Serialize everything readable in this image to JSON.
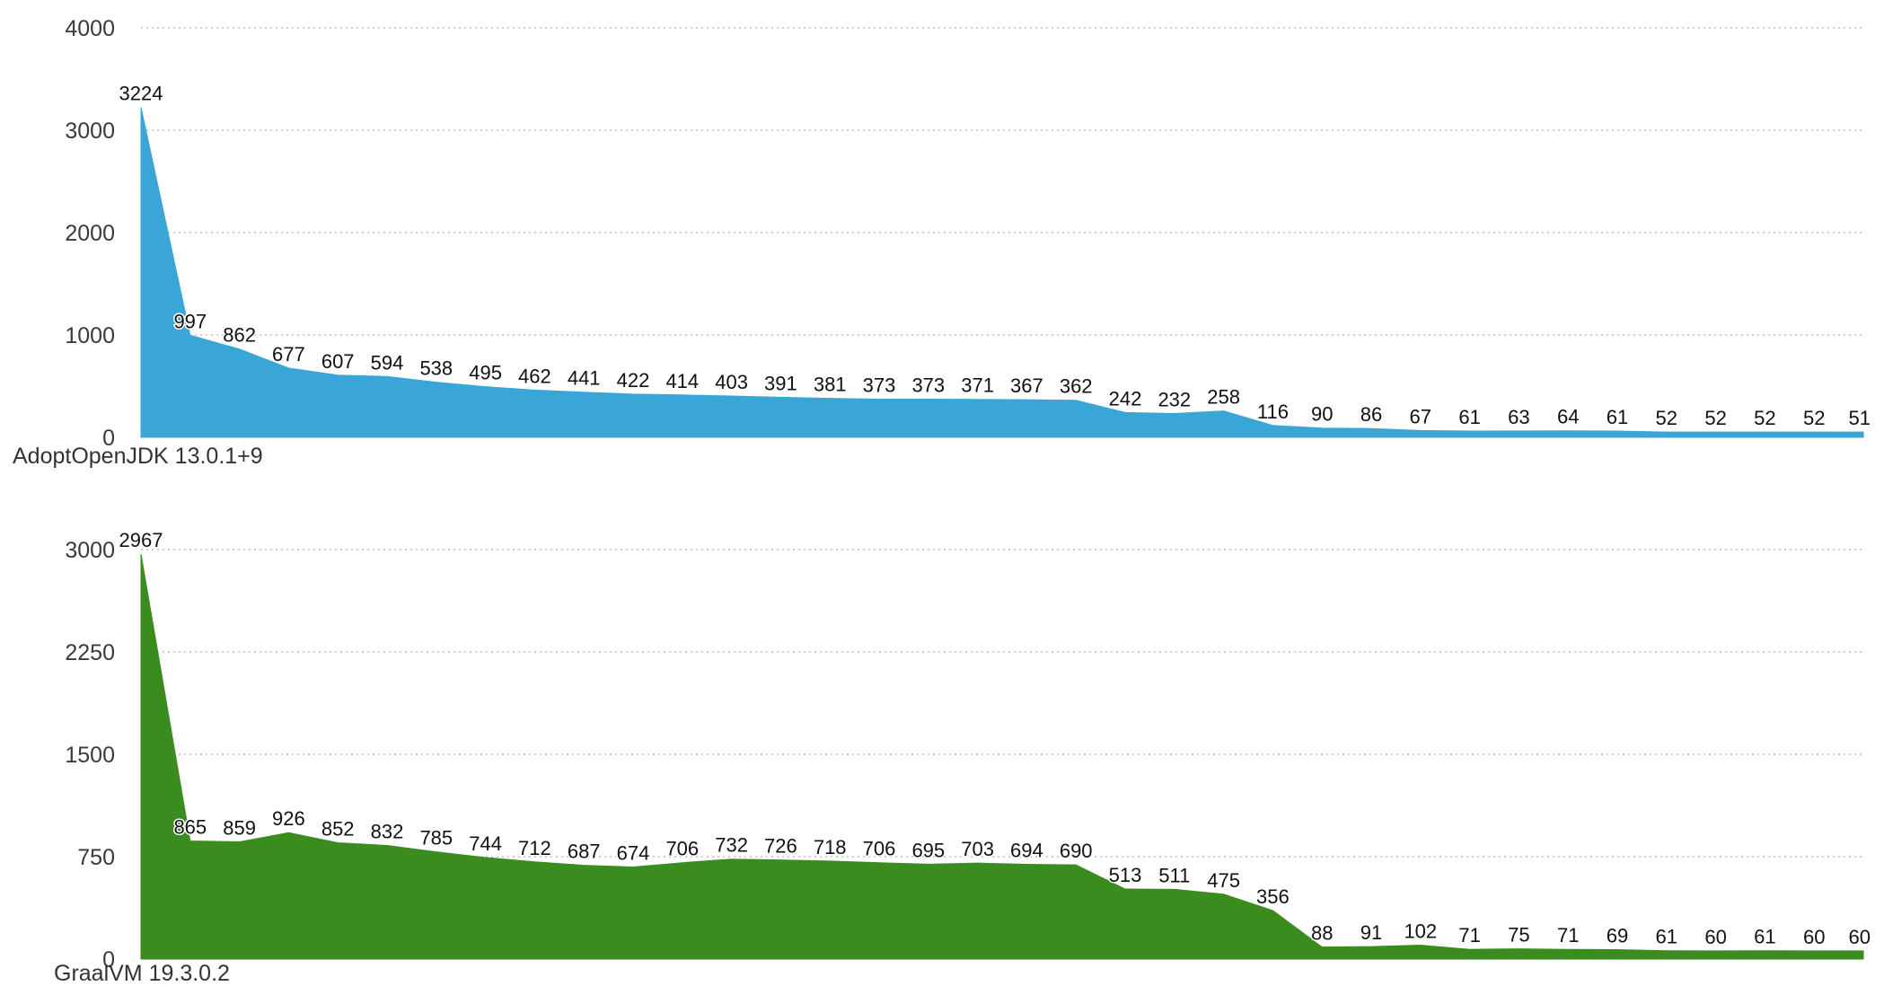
{
  "chart_data": [
    {
      "type": "area",
      "title": "AdoptOpenJDK 13.0.1+9",
      "color": "#3aa6d8",
      "ylim": [
        0,
        4000
      ],
      "yticks": [
        0,
        1000,
        2000,
        3000,
        4000
      ],
      "grid": true,
      "series": [
        {
          "values": [
            3224,
            997,
            862,
            677,
            607,
            594,
            538,
            495,
            462,
            441,
            422,
            414,
            403,
            391,
            381,
            373,
            373,
            371,
            367,
            362,
            242,
            232,
            258,
            116,
            90,
            86,
            67,
            61,
            63,
            64,
            61,
            52,
            52,
            52,
            52,
            51
          ]
        }
      ]
    },
    {
      "type": "area",
      "title": "GraalVM 19.3.0.2",
      "color": "#3a8c1e",
      "ylim": [
        0,
        3000
      ],
      "yticks": [
        0,
        750,
        1500,
        2250,
        3000
      ],
      "grid": true,
      "series": [
        {
          "values": [
            2967,
            865,
            859,
            926,
            852,
            832,
            785,
            744,
            712,
            687,
            674,
            706,
            732,
            726,
            718,
            706,
            695,
            703,
            694,
            690,
            513,
            511,
            475,
            356,
            88,
            91,
            102,
            71,
            75,
            71,
            69,
            61,
            60,
            61,
            60,
            60
          ]
        }
      ]
    }
  ]
}
